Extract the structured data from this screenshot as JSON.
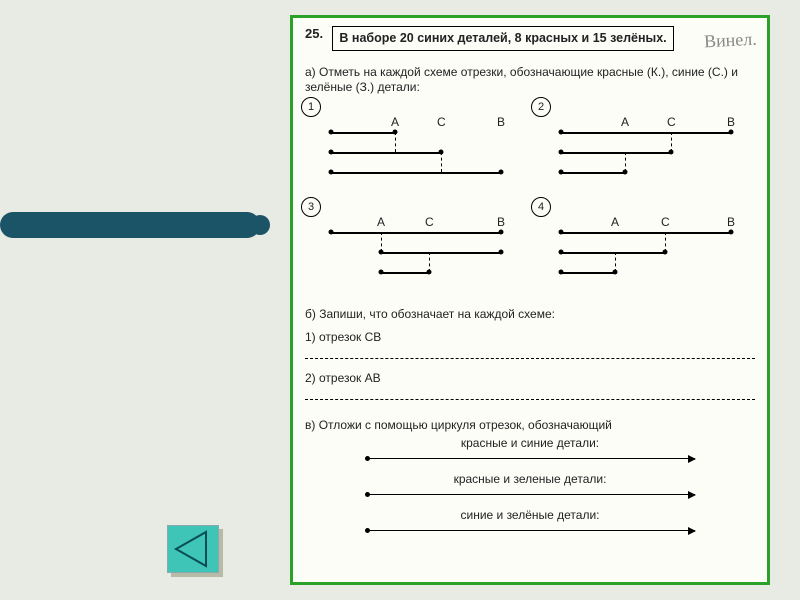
{
  "decor": {
    "bar_color": "#1b5467",
    "btn_color": "#3ec5b8"
  },
  "page": {
    "question_number": "25.",
    "prompt": "В наборе 20 синих деталей, 8 красных и 15 зелёных.",
    "handwritten": "Винел.",
    "part_a": "а) Отметь на каждой схеме отрезки, обозначающие красные (К.), синие (С.) и зелёные (З.) детали:",
    "labels": {
      "A": "А",
      "C": "С",
      "B": "В"
    },
    "diagrams": {
      "d1": {
        "num": "1",
        "A": 90,
        "C": 136,
        "B": 196,
        "segs": [
          [
            26,
            90,
            25
          ],
          [
            26,
            136,
            45
          ],
          [
            26,
            196,
            65
          ]
        ],
        "dash": [
          [
            90,
            25,
            20
          ],
          [
            136,
            45,
            20
          ]
        ]
      },
      "d2": {
        "num": "2",
        "A": 90,
        "C": 136,
        "B": 196,
        "segs": [
          [
            26,
            196,
            25
          ],
          [
            26,
            136,
            45
          ],
          [
            26,
            90,
            65
          ]
        ],
        "dash": [
          [
            90,
            45,
            20
          ],
          [
            136,
            25,
            20
          ]
        ]
      },
      "d3": {
        "num": "3",
        "A": 76,
        "C": 124,
        "B": 196,
        "segs": [
          [
            26,
            196,
            25
          ],
          [
            76,
            196,
            45
          ],
          [
            76,
            124,
            65
          ]
        ],
        "dash": [
          [
            76,
            25,
            20
          ],
          [
            124,
            45,
            20
          ]
        ]
      },
      "d4": {
        "num": "4",
        "A": 80,
        "C": 130,
        "B": 196,
        "segs": [
          [
            26,
            196,
            25
          ],
          [
            26,
            130,
            45
          ],
          [
            26,
            80,
            65
          ]
        ],
        "dash": [
          [
            80,
            45,
            20
          ],
          [
            130,
            25,
            20
          ]
        ]
      }
    },
    "part_b": "б) Запиши, что обозначает на каждой схеме:",
    "b1": "1) отрезок СВ",
    "b2": "2) отрезок АВ",
    "part_c": "в) Отложи с помощью циркуля отрезок, обозначающий",
    "c1": "красные и синие детали:",
    "c2": "красные и зеленые детали:",
    "c3": "синие и зелёные детали:"
  }
}
